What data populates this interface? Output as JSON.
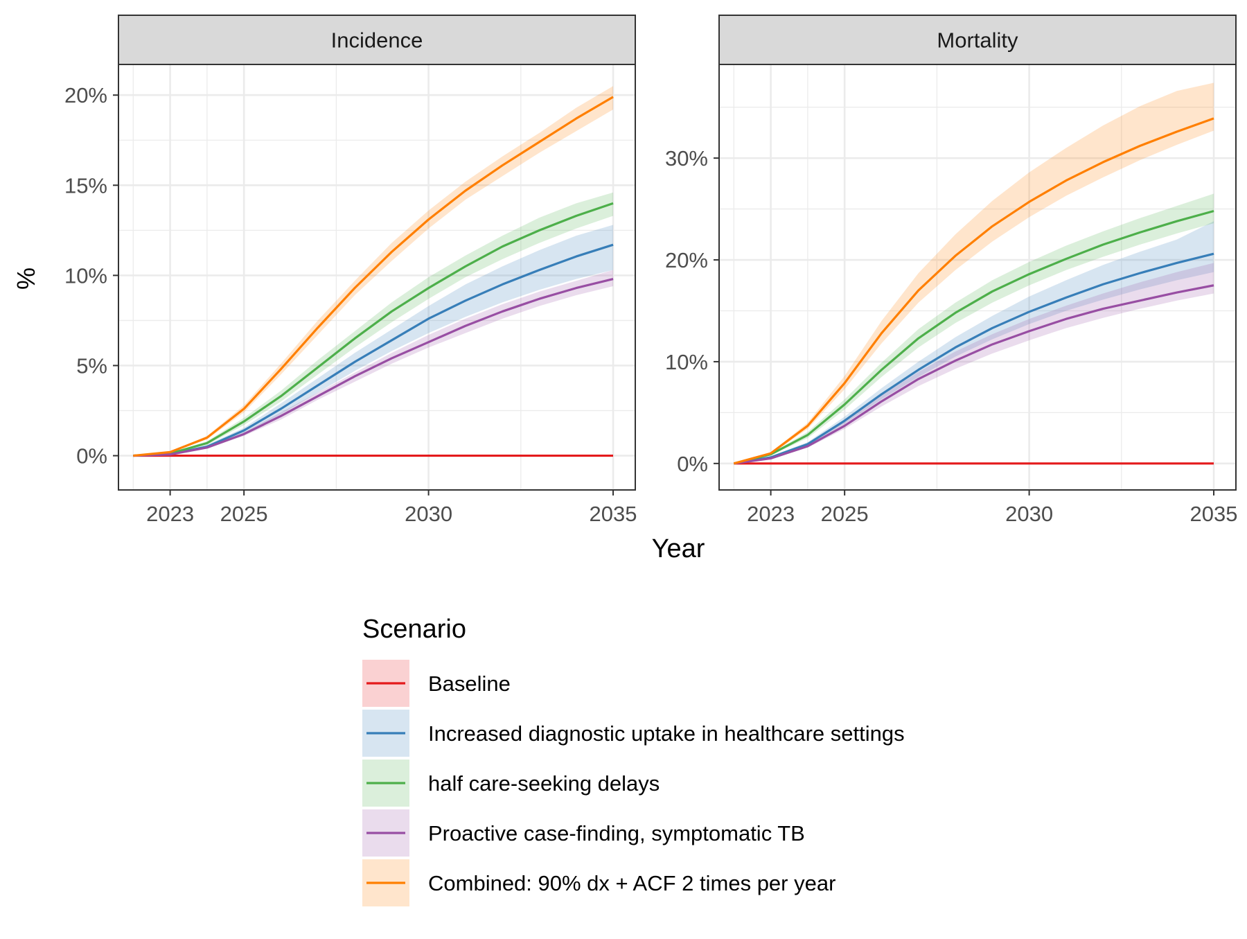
{
  "y_axis_label": "%",
  "x_axis_label": "Year",
  "legend_title": "Scenario",
  "chart_data": [
    {
      "type": "line",
      "title": "Incidence",
      "xlabel": "Year",
      "ylabel": "%",
      "xlim": [
        2021.6,
        2035.6
      ],
      "ylim": [
        -1.9,
        21.7
      ],
      "x_ticks": [
        2023,
        2025,
        2030,
        2035
      ],
      "x_tick_labels": [
        "2023",
        "2025",
        "2030",
        "2035"
      ],
      "y_ticks": [
        0,
        5,
        10,
        15,
        20
      ],
      "y_tick_labels": [
        "0%",
        "5%",
        "10%",
        "15%",
        "20%"
      ],
      "grid": true,
      "x": [
        2022,
        2023,
        2024,
        2025,
        2026,
        2027,
        2028,
        2029,
        2030,
        2031,
        2032,
        2033,
        2034,
        2035
      ],
      "series": [
        {
          "name": "Baseline",
          "color": "#E41A1C",
          "values": [
            0,
            0,
            0,
            0,
            0,
            0,
            0,
            0,
            0,
            0,
            0,
            0,
            0,
            0
          ],
          "lower": [
            0,
            0,
            0,
            0,
            0,
            0,
            0,
            0,
            0,
            0,
            0,
            0,
            0,
            0
          ],
          "upper": [
            0,
            0,
            0,
            0,
            0,
            0,
            0,
            0,
            0,
            0,
            0,
            0,
            0,
            0
          ]
        },
        {
          "name": "Increased diagnostic uptake in healthcare settings",
          "color": "#377EB8",
          "values": [
            0,
            0.08,
            0.5,
            1.4,
            2.6,
            3.9,
            5.2,
            6.4,
            7.6,
            8.6,
            9.5,
            10.3,
            11.05,
            11.7
          ],
          "lower": [
            0,
            0.06,
            0.42,
            1.2,
            2.3,
            3.5,
            4.7,
            5.8,
            6.8,
            7.7,
            8.5,
            9.2,
            9.8,
            10.3
          ],
          "upper": [
            0,
            0.1,
            0.6,
            1.55,
            2.9,
            4.3,
            5.7,
            7.0,
            8.3,
            9.5,
            10.5,
            11.4,
            12.2,
            12.8
          ]
        },
        {
          "name": "half care-seeking delays",
          "color": "#4DAF4A",
          "values": [
            0,
            0.12,
            0.7,
            1.9,
            3.3,
            4.9,
            6.5,
            8.0,
            9.3,
            10.5,
            11.6,
            12.5,
            13.3,
            14.0
          ],
          "lower": [
            0,
            0.1,
            0.6,
            1.7,
            3.0,
            4.5,
            6.0,
            7.4,
            8.7,
            9.9,
            10.9,
            11.8,
            12.6,
            13.3
          ],
          "upper": [
            0,
            0.15,
            0.8,
            2.1,
            3.6,
            5.3,
            6.9,
            8.5,
            9.9,
            11.1,
            12.2,
            13.2,
            14.0,
            14.6
          ]
        },
        {
          "name": "Proactive case-finding, symptomatic TB",
          "color": "#984EA3",
          "values": [
            0,
            0.07,
            0.45,
            1.2,
            2.2,
            3.3,
            4.4,
            5.4,
            6.3,
            7.2,
            8.0,
            8.7,
            9.3,
            9.8
          ],
          "lower": [
            0,
            0.06,
            0.4,
            1.1,
            2.0,
            3.1,
            4.1,
            5.1,
            6.0,
            6.8,
            7.6,
            8.3,
            8.9,
            9.4
          ],
          "upper": [
            0,
            0.08,
            0.5,
            1.3,
            2.4,
            3.5,
            4.6,
            5.7,
            6.7,
            7.6,
            8.4,
            9.1,
            9.7,
            10.3
          ]
        },
        {
          "name": "Combined: 90% dx + ACF 2 times per year",
          "color": "#FF7F00",
          "values": [
            0,
            0.2,
            1.0,
            2.6,
            4.8,
            7.1,
            9.3,
            11.3,
            13.1,
            14.7,
            16.1,
            17.4,
            18.7,
            19.9
          ],
          "lower": [
            0,
            0.17,
            0.9,
            2.4,
            4.5,
            6.7,
            8.9,
            10.8,
            12.6,
            14.2,
            15.5,
            16.8,
            18.0,
            19.2
          ],
          "upper": [
            0,
            0.23,
            1.1,
            2.8,
            5.1,
            7.5,
            9.7,
            11.8,
            13.6,
            15.2,
            16.6,
            17.9,
            19.3,
            20.5
          ]
        }
      ]
    },
    {
      "type": "line",
      "title": "Mortality",
      "xlabel": "Year",
      "ylabel": "%",
      "xlim": [
        2021.6,
        2035.6
      ],
      "ylim": [
        -2.6,
        39.2
      ],
      "x_ticks": [
        2023,
        2025,
        2030,
        2035
      ],
      "x_tick_labels": [
        "2023",
        "2025",
        "2030",
        "2035"
      ],
      "y_ticks": [
        0,
        10,
        20,
        30
      ],
      "y_tick_labels": [
        "0%",
        "10%",
        "20%",
        "30%"
      ],
      "grid": true,
      "x": [
        2022,
        2023,
        2024,
        2025,
        2026,
        2027,
        2028,
        2029,
        2030,
        2031,
        2032,
        2033,
        2034,
        2035
      ],
      "series": [
        {
          "name": "Baseline",
          "color": "#E41A1C",
          "values": [
            0,
            0,
            0,
            0,
            0,
            0,
            0,
            0,
            0,
            0,
            0,
            0,
            0,
            0
          ],
          "lower": [
            0,
            0,
            0,
            0,
            0,
            0,
            0,
            0,
            0,
            0,
            0,
            0,
            0,
            0
          ],
          "upper": [
            0,
            0,
            0,
            0,
            0,
            0,
            0,
            0,
            0,
            0,
            0,
            0,
            0,
            0
          ]
        },
        {
          "name": "Increased diagnostic uptake in healthcare settings",
          "color": "#377EB8",
          "values": [
            0,
            0.6,
            1.9,
            4.2,
            6.8,
            9.2,
            11.4,
            13.3,
            14.9,
            16.3,
            17.6,
            18.7,
            19.7,
            20.6
          ],
          "lower": [
            0,
            0.5,
            1.7,
            3.9,
            6.3,
            8.5,
            10.5,
            12.2,
            13.7,
            15.0,
            16.1,
            17.1,
            18.0,
            18.8
          ],
          "upper": [
            0,
            0.7,
            2.1,
            4.6,
            7.4,
            10.0,
            12.4,
            14.5,
            16.4,
            18.0,
            19.5,
            20.8,
            22.0,
            23.8
          ]
        },
        {
          "name": "half care-seeking delays",
          "color": "#4DAF4A",
          "values": [
            0,
            0.9,
            2.8,
            5.8,
            9.2,
            12.3,
            14.8,
            16.9,
            18.6,
            20.1,
            21.5,
            22.7,
            23.8,
            24.8
          ],
          "lower": [
            0,
            0.8,
            2.5,
            5.3,
            8.5,
            11.4,
            13.8,
            15.8,
            17.5,
            19.0,
            20.3,
            21.5,
            22.6,
            23.6
          ],
          "upper": [
            0,
            1.0,
            3.1,
            6.3,
            9.9,
            13.2,
            15.8,
            18.0,
            19.8,
            21.4,
            22.8,
            24.1,
            25.3,
            26.5
          ]
        },
        {
          "name": "Proactive case-finding, symptomatic TB",
          "color": "#984EA3",
          "values": [
            0,
            0.5,
            1.7,
            3.7,
            6.1,
            8.3,
            10.1,
            11.7,
            13.0,
            14.2,
            15.2,
            16.0,
            16.8,
            17.5
          ],
          "lower": [
            0,
            0.45,
            1.55,
            3.4,
            5.6,
            7.6,
            9.3,
            10.8,
            12.1,
            13.3,
            14.3,
            15.2,
            16.0,
            16.7
          ],
          "upper": [
            0,
            0.55,
            1.9,
            4.1,
            6.7,
            9.0,
            11.0,
            12.7,
            14.2,
            15.5,
            16.7,
            17.8,
            18.8,
            19.7
          ]
        },
        {
          "name": "Combined: 90% dx + ACF 2 times per year",
          "color": "#FF7F00",
          "values": [
            0,
            1.0,
            3.7,
            7.9,
            12.8,
            17.0,
            20.4,
            23.3,
            25.7,
            27.8,
            29.6,
            31.2,
            32.6,
            33.9
          ],
          "lower": [
            0,
            0.9,
            3.4,
            7.3,
            11.8,
            15.8,
            19.0,
            21.8,
            24.2,
            26.3,
            28.1,
            29.8,
            31.3,
            32.7
          ],
          "upper": [
            0,
            1.1,
            4.0,
            8.6,
            14.0,
            18.7,
            22.5,
            25.8,
            28.6,
            31.0,
            33.2,
            35.1,
            36.6,
            37.4
          ]
        }
      ]
    }
  ]
}
